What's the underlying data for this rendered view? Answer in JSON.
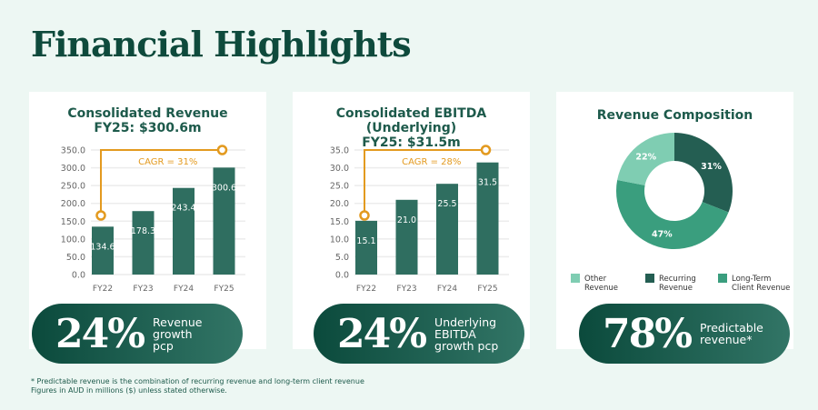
{
  "title": "Financial Highlights",
  "chart_data": [
    {
      "type": "bar",
      "title": "Consolidated Revenue\nFY25: $300.6m",
      "categories": [
        "FY22",
        "FY23",
        "FY24",
        "FY25"
      ],
      "values": [
        134.6,
        178.3,
        243.4,
        300.6
      ],
      "value_labels": [
        "134.6",
        "178.3",
        "243.4",
        "300.6"
      ],
      "ylim": [
        0,
        350
      ],
      "yticks": [
        "0.0",
        "50.0",
        "100.0",
        "150.0",
        "200.0",
        "250.0",
        "300.0",
        "350.0"
      ],
      "grid": true,
      "annotation": "CAGR = 31%",
      "bar_color": "#2f6e60",
      "annotation_color": "#e39a1f"
    },
    {
      "type": "bar",
      "title": "Consolidated EBITDA (Underlying)\nFY25: $31.5m",
      "categories": [
        "FY22",
        "FY23",
        "FY24",
        "FY25"
      ],
      "values": [
        15.1,
        21.0,
        25.5,
        31.5
      ],
      "value_labels": [
        "15.1",
        "21.0",
        "25.5",
        "31.5"
      ],
      "ylim": [
        0,
        35
      ],
      "yticks": [
        "0.0",
        "5.0",
        "10.0",
        "15.0",
        "20.0",
        "25.0",
        "30.0",
        "35.0"
      ],
      "grid": true,
      "annotation": "CAGR = 28%",
      "bar_color": "#2f6e60",
      "annotation_color": "#e39a1f"
    },
    {
      "type": "pie",
      "title": "Revenue Composition",
      "donut": true,
      "slices": [
        {
          "name": "Recurring Revenue",
          "legend": "Recurring\nRevenue",
          "value": 31,
          "label": "31%",
          "color": "#245e52"
        },
        {
          "name": "Long-Term Client Revenue",
          "legend": "Long-Term\nClient Revenue",
          "value": 47,
          "label": "47%",
          "color": "#3a9e7e"
        },
        {
          "name": "Other Revenue",
          "legend": "Other\nRevenue",
          "value": 22,
          "label": "22%",
          "color": "#7fcdb2"
        }
      ],
      "legend_order": [
        2,
        0,
        1
      ],
      "legend_position": "bottom"
    }
  ],
  "pills": [
    {
      "big": "24%",
      "label": "Revenue\ngrowth\npcp"
    },
    {
      "big": "24%",
      "label": "Underlying\nEBITDA\ngrowth pcp"
    },
    {
      "big": "78%",
      "label": "Predictable\nrevenue*"
    }
  ],
  "footnote": [
    "* Predictable revenue is the combination of recurring revenue and long-term client revenue",
    "Figures in AUD in millions ($) unless stated otherwise."
  ]
}
